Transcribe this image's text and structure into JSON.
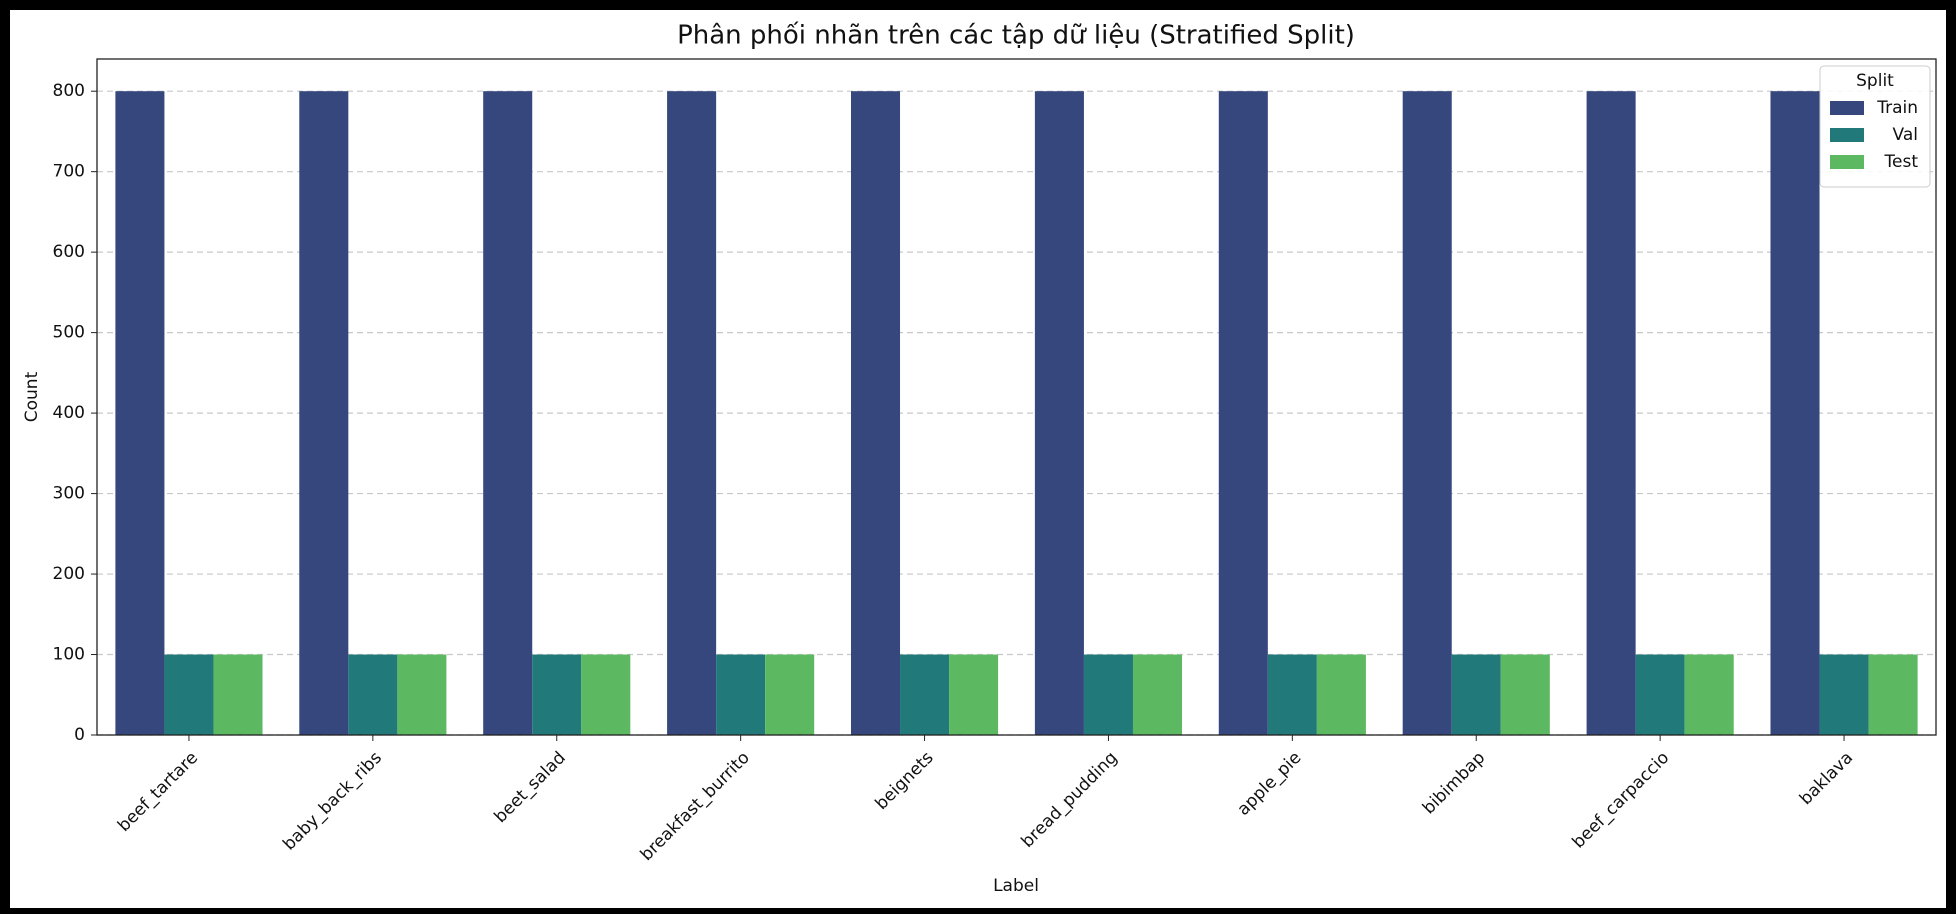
{
  "chart_data": {
    "type": "bar",
    "title": "Phân phối nhãn trên các tập dữ liệu (Stratified Split)",
    "x_label": "Label",
    "y_label": "Count",
    "categories": [
      "beef_tartare",
      "baby_back_ribs",
      "beet_salad",
      "breakfast_burrito",
      "beignets",
      "bread_pudding",
      "apple_pie",
      "bibimbap",
      "beef_carpaccio",
      "baklava"
    ],
    "series": [
      {
        "name": "Train",
        "color": "#35477d",
        "values": [
          800,
          800,
          800,
          800,
          800,
          800,
          800,
          800,
          800,
          800
        ]
      },
      {
        "name": "Val",
        "color": "#21797a",
        "values": [
          100,
          100,
          100,
          100,
          100,
          100,
          100,
          100,
          100,
          100
        ]
      },
      {
        "name": "Test",
        "color": "#5db961",
        "values": [
          100,
          100,
          100,
          100,
          100,
          100,
          100,
          100,
          100,
          100
        ]
      }
    ],
    "ylim": [
      0,
      840
    ],
    "yticks": [
      0,
      100,
      200,
      300,
      400,
      500,
      600,
      700,
      800
    ],
    "grid": true,
    "legend": "upper right",
    "legend_title": "Split"
  }
}
